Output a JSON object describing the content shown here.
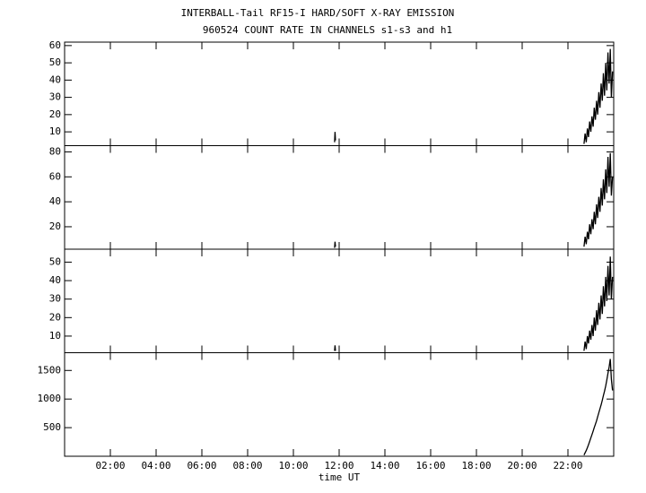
{
  "chart_data": [
    {
      "type": "line",
      "title": "INTERBALL-Tail RF15-I HARD/SOFT X-RAY EMISSION",
      "subtitle": "960524  COUNT RATE IN CHANNELS s1-s3 and h1",
      "xlim": [
        0,
        24
      ],
      "xticks": [
        2,
        4,
        6,
        8,
        10,
        12,
        14,
        16,
        18,
        20,
        22
      ],
      "ylim": [
        2,
        62
      ],
      "yticks": [
        10,
        20,
        30,
        40,
        50,
        60
      ],
      "series": [
        {
          "color": "#000000",
          "x": [
            11.8,
            11.82,
            11.84,
            12.0,
            22.7,
            22.75,
            22.8,
            22.85,
            22.9,
            22.95,
            23.0,
            23.05,
            23.1,
            23.15,
            23.2,
            23.25,
            23.3,
            23.35,
            23.4,
            23.45,
            23.5,
            23.55,
            23.6,
            23.65,
            23.7,
            23.75,
            23.8,
            23.85,
            23.9,
            23.95
          ],
          "values": [
            4,
            10,
            5,
            null,
            3,
            9,
            4,
            12,
            7,
            16,
            10,
            19,
            13,
            24,
            17,
            28,
            20,
            33,
            24,
            38,
            28,
            44,
            31,
            50,
            34,
            56,
            38,
            58,
            30,
            45
          ]
        }
      ]
    },
    {
      "type": "line",
      "xlim": [
        0,
        24
      ],
      "xticks": [
        2,
        4,
        6,
        8,
        10,
        12,
        14,
        16,
        18,
        20,
        22
      ],
      "ylim": [
        2,
        85
      ],
      "yticks": [
        20,
        40,
        60,
        80
      ],
      "series": [
        {
          "color": "#000000",
          "x": [
            11.8,
            11.82,
            11.84,
            12.0,
            22.7,
            22.75,
            22.8,
            22.85,
            22.9,
            22.95,
            23.0,
            23.05,
            23.1,
            23.15,
            23.2,
            23.25,
            23.3,
            23.35,
            23.4,
            23.45,
            23.5,
            23.55,
            23.6,
            23.65,
            23.7,
            23.75,
            23.8,
            23.85,
            23.9,
            23.95
          ],
          "values": [
            3,
            8,
            4,
            null,
            4,
            12,
            6,
            16,
            10,
            22,
            14,
            26,
            18,
            32,
            22,
            38,
            27,
            44,
            32,
            51,
            37,
            58,
            42,
            66,
            47,
            76,
            52,
            79,
            45,
            60
          ]
        }
      ]
    },
    {
      "type": "line",
      "xlim": [
        0,
        24
      ],
      "xticks": [
        2,
        4,
        6,
        8,
        10,
        12,
        14,
        16,
        18,
        20,
        22
      ],
      "ylim": [
        1,
        57
      ],
      "yticks": [
        10,
        20,
        30,
        40,
        50
      ],
      "series": [
        {
          "color": "#000000",
          "x": [
            11.8,
            11.82,
            11.84,
            12.0,
            22.7,
            22.75,
            22.8,
            22.85,
            22.9,
            22.95,
            23.0,
            23.05,
            23.1,
            23.15,
            23.2,
            23.25,
            23.3,
            23.35,
            23.4,
            23.45,
            23.5,
            23.55,
            23.6,
            23.65,
            23.7,
            23.75,
            23.8,
            23.85,
            23.9,
            23.95
          ],
          "values": [
            2,
            5,
            2,
            null,
            2,
            7,
            3,
            10,
            6,
            13,
            8,
            16,
            10,
            20,
            13,
            24,
            16,
            28,
            19,
            32,
            22,
            37,
            26,
            42,
            29,
            48,
            32,
            53,
            30,
            42
          ]
        }
      ]
    },
    {
      "type": "line",
      "xlabel": "time UT",
      "xlim": [
        0,
        24
      ],
      "xticks": [
        {
          "value": 2,
          "label": "02:00"
        },
        {
          "value": 4,
          "label": "04:00"
        },
        {
          "value": 6,
          "label": "06:00"
        },
        {
          "value": 8,
          "label": "08:00"
        },
        {
          "value": 10,
          "label": "10:00"
        },
        {
          "value": 12,
          "label": "12:00"
        },
        {
          "value": 14,
          "label": "14:00"
        },
        {
          "value": 16,
          "label": "16:00"
        },
        {
          "value": 18,
          "label": "18:00"
        },
        {
          "value": 20,
          "label": "20:00"
        },
        {
          "value": 22,
          "label": "22:00"
        }
      ],
      "ylim": [
        0,
        1810
      ],
      "yticks": [
        500,
        1000,
        1500
      ],
      "series": [
        {
          "color": "#000000",
          "x": [
            22.7,
            22.75,
            22.8,
            22.85,
            22.9,
            22.95,
            23.0,
            23.05,
            23.1,
            23.15,
            23.2,
            23.25,
            23.3,
            23.35,
            23.4,
            23.45,
            23.5,
            23.55,
            23.6,
            23.65,
            23.7,
            23.75,
            23.8,
            23.85,
            23.9,
            23.95
          ],
          "values": [
            20,
            60,
            100,
            150,
            200,
            260,
            320,
            380,
            440,
            500,
            560,
            620,
            690,
            760,
            830,
            900,
            980,
            1060,
            1140,
            1230,
            1330,
            1450,
            1560,
            1700,
            1350,
            1150
          ]
        }
      ]
    }
  ]
}
